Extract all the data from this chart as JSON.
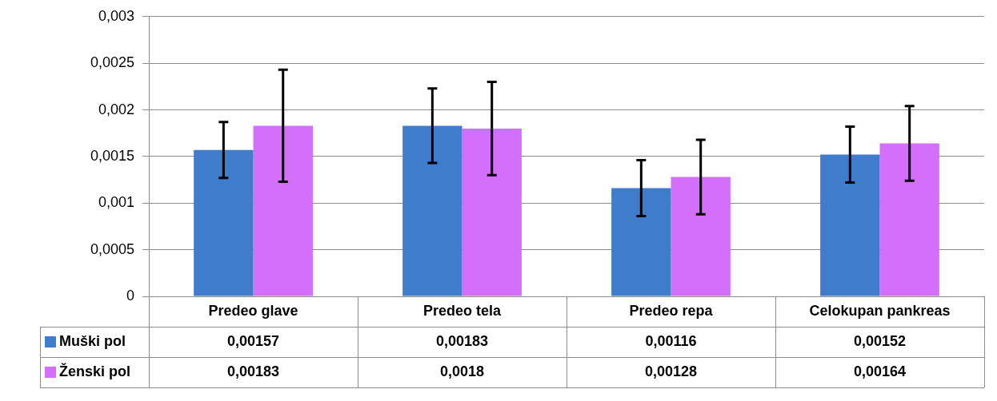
{
  "chart_data": {
    "type": "bar",
    "categories": [
      "Predeo glave",
      "Predeo tela",
      "Predeo repa",
      "Celokupan pankreas"
    ],
    "series": [
      {
        "name": "Muški pol",
        "color": "#3f7ccc",
        "values": [
          0.00157,
          0.00183,
          0.00116,
          0.00152
        ],
        "errors": [
          0.0003,
          0.0004,
          0.0003,
          0.0003
        ],
        "value_labels": [
          "0,00157",
          "0,00183",
          "0,00116",
          "0,00152"
        ]
      },
      {
        "name": "Ženski pol",
        "color": "#d36ffb",
        "values": [
          0.00183,
          0.0018,
          0.00128,
          0.00164
        ],
        "errors": [
          0.0006,
          0.0005,
          0.0004,
          0.0004
        ],
        "value_labels": [
          "0,00183",
          "0,0018",
          "0,00128",
          "0,00164"
        ]
      }
    ],
    "ylim": [
      0,
      0.003
    ],
    "yticks": [
      {
        "value": 0,
        "label": "0"
      },
      {
        "value": 0.0005,
        "label": "0,0005"
      },
      {
        "value": 0.001,
        "label": "0,001"
      },
      {
        "value": 0.0015,
        "label": "0,0015"
      },
      {
        "value": 0.002,
        "label": "0,002"
      },
      {
        "value": 0.0025,
        "label": "0,0025"
      },
      {
        "value": 0.003,
        "label": "0,003"
      }
    ],
    "grid": "y",
    "legend": "bottom left"
  }
}
